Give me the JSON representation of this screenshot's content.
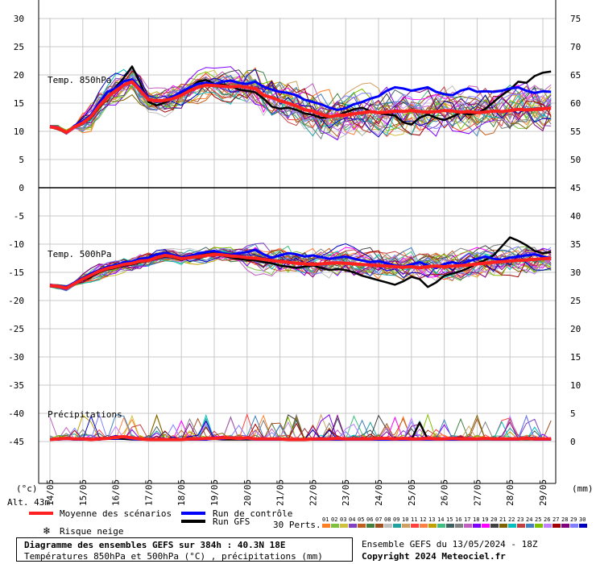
{
  "chart_data": {
    "type": "line",
    "title": "Diagramme des ensembles GEFS sur 384h : 40.3N 18E",
    "subtitle": "Températures 850hPa et 500hPa (°C) , précipitations (mm)",
    "ensemble_label": "Ensemble GEFS du 13/05/2024 - 18Z",
    "copyright": "Copyright 2024 Meteociel.fr",
    "altitude": "Alt. 43m",
    "left_unit": "(°c)",
    "right_unit": "(mm)",
    "panel_labels": {
      "t850": "Temp. 850hPa",
      "t500": "Temp. 500hPa",
      "precip": "Précipitations"
    },
    "x_dates": [
      "14/05",
      "15/05",
      "16/05",
      "17/05",
      "18/05",
      "19/05",
      "20/05",
      "21/05",
      "22/05",
      "23/05",
      "24/05",
      "25/05",
      "26/05",
      "27/05",
      "28/05",
      "29/05"
    ],
    "x_range_days": [
      0,
      15.25
    ],
    "left_ticks": [
      30,
      25,
      20,
      15,
      10,
      5,
      0,
      -5,
      -10,
      -15,
      -20,
      -25,
      -30,
      -35,
      -40,
      -45
    ],
    "right_ticks": [
      75,
      70,
      65,
      60,
      55,
      50,
      45,
      40,
      35,
      30,
      25,
      20,
      15,
      10,
      5,
      0
    ],
    "legend": {
      "mean": "Moyenne des scénarios",
      "control": "Run de contrôle",
      "gfs": "Run GFS",
      "snow": "Risque neige",
      "perts": "30 Perts."
    },
    "perturbation_ids": [
      "01",
      "02",
      "03",
      "04",
      "05",
      "06",
      "07",
      "08",
      "09",
      "10",
      "11",
      "12",
      "13",
      "14",
      "15",
      "16",
      "17",
      "18",
      "19",
      "20",
      "21",
      "22",
      "23",
      "24",
      "25",
      "26",
      "27",
      "28",
      "29",
      "30"
    ],
    "perturbation_colors": [
      "#ff7f27",
      "#80c040",
      "#d0c040",
      "#8040c0",
      "#c06020",
      "#408040",
      "#a05020",
      "#c0c0c0",
      "#20a0a0",
      "#d0a060",
      "#ff4040",
      "#ff8040",
      "#c0a000",
      "#40c080",
      "#406060",
      "#808080",
      "#c060c0",
      "#8000ff",
      "#ff00ff",
      "#404040",
      "#806000",
      "#00c0c0",
      "#c04040",
      "#4080c0",
      "#80c000",
      "#c080ff",
      "#a00000",
      "#800080",
      "#8080ff",
      "#0000c0"
    ],
    "series_t850": {
      "x": [
        0,
        0.25,
        0.5,
        0.75,
        1,
        1.25,
        1.5,
        1.75,
        2,
        2.25,
        2.5,
        2.75,
        3,
        3.25,
        3.5,
        3.75,
        4,
        4.25,
        4.5,
        4.75,
        5,
        5.25,
        5.5,
        5.75,
        6,
        6.25,
        6.5,
        6.75,
        7,
        7.25,
        7.5,
        7.75,
        8,
        8.25,
        8.5,
        8.75,
        9,
        9.25,
        9.5,
        9.75,
        10,
        10.25,
        10.5,
        10.75,
        11,
        11.25,
        11.5,
        11.75,
        12,
        12.25,
        12.5,
        12.75,
        13,
        13.25,
        13.5,
        13.75,
        14,
        14.25,
        14.5,
        14.75,
        15,
        15.25
      ],
      "mean": [
        10.8,
        10.6,
        9.8,
        10.8,
        11.5,
        12.6,
        14.5,
        16.1,
        17.2,
        18.2,
        18.8,
        17.2,
        15.6,
        15.4,
        15.5,
        15.8,
        16.4,
        17.2,
        17.8,
        18.2,
        18.1,
        18.0,
        17.9,
        18.0,
        17.8,
        17.6,
        16.4,
        16.0,
        15.4,
        15.0,
        14.5,
        13.8,
        13.6,
        13.0,
        12.6,
        12.8,
        12.9,
        13.1,
        13.3,
        13.5,
        13.3,
        13.4,
        13.6,
        13.5,
        13.7,
        13.5,
        13.4,
        13.5,
        13.7,
        13.6,
        13.4,
        13.5,
        13.3,
        13.4,
        13.6,
        13.5,
        13.7,
        13.9,
        13.8,
        13.9,
        14.0,
        14.1
      ],
      "control": [
        10.9,
        10.7,
        9.7,
        11.0,
        11.8,
        12.9,
        15.0,
        17.0,
        17.6,
        18.9,
        19.2,
        17.6,
        15.8,
        15.2,
        15.6,
        16.2,
        17.0,
        17.8,
        18.4,
        18.6,
        18.3,
        18.8,
        19.0,
        18.6,
        18.4,
        18.8,
        17.9,
        17.4,
        17.0,
        16.8,
        16.4,
        15.6,
        15.2,
        14.8,
        14.2,
        13.8,
        14.1,
        14.8,
        15.2,
        15.8,
        16.2,
        17.2,
        17.8,
        17.6,
        17.2,
        17.5,
        17.8,
        17.0,
        16.6,
        16.4,
        17.2,
        17.6,
        17.0,
        17.1,
        17.0,
        17.2,
        17.6,
        17.8,
        17.2,
        16.8,
        17.1,
        17.0
      ],
      "gfs": [
        10.8,
        10.5,
        9.9,
        10.7,
        11.4,
        12.4,
        14.2,
        16.0,
        17.8,
        19.5,
        21.5,
        18.5,
        15.2,
        14.6,
        15.1,
        15.8,
        16.6,
        17.6,
        18.8,
        19.1,
        18.4,
        18.3,
        18.0,
        17.4,
        17.2,
        16.9,
        15.8,
        14.4,
        14.0,
        14.2,
        13.8,
        13.2,
        12.9,
        12.4,
        12.5,
        12.8,
        13.4,
        13.9,
        14.2,
        13.6,
        13.2,
        13.0,
        12.8,
        11.6,
        11.2,
        12.4,
        13.0,
        12.4,
        12.0,
        12.6,
        13.3,
        13.0,
        13.2,
        14.0,
        15.2,
        16.4,
        17.4,
        18.8,
        18.6,
        19.8,
        20.4,
        20.6
      ]
    },
    "series_t500": {
      "x": [
        0,
        0.25,
        0.5,
        0.75,
        1,
        1.25,
        1.5,
        1.75,
        2,
        2.25,
        2.5,
        2.75,
        3,
        3.25,
        3.5,
        3.75,
        4,
        4.25,
        4.5,
        4.75,
        5,
        5.25,
        5.5,
        5.75,
        6,
        6.25,
        6.5,
        6.75,
        7,
        7.25,
        7.5,
        7.75,
        8,
        8.25,
        8.5,
        8.75,
        9,
        9.25,
        9.5,
        9.75,
        10,
        10.25,
        10.5,
        10.75,
        11,
        11.25,
        11.5,
        11.75,
        12,
        12.25,
        12.5,
        12.75,
        13,
        13.25,
        13.5,
        13.75,
        14,
        14.25,
        14.5,
        14.75,
        15,
        15.25
      ],
      "mean": [
        -17.3,
        -17.5,
        -17.8,
        -17.0,
        -16.2,
        -15.5,
        -14.8,
        -14.3,
        -14.0,
        -13.6,
        -13.4,
        -13.0,
        -12.9,
        -12.4,
        -12.0,
        -12.2,
        -12.6,
        -12.4,
        -12.2,
        -12.0,
        -11.8,
        -11.9,
        -12.1,
        -12.2,
        -12.4,
        -12.5,
        -12.7,
        -12.9,
        -13.1,
        -13.2,
        -13.4,
        -13.5,
        -13.6,
        -13.5,
        -13.4,
        -13.3,
        -13.4,
        -13.5,
        -13.6,
        -13.7,
        -13.8,
        -13.9,
        -14.0,
        -14.1,
        -14.0,
        -14.2,
        -14.0,
        -13.9,
        -14.0,
        -13.9,
        -13.8,
        -13.7,
        -13.5,
        -13.4,
        -13.2,
        -13.1,
        -13.0,
        -12.9,
        -12.8,
        -12.7,
        -12.6,
        -12.5
      ],
      "control": [
        -17.2,
        -17.4,
        -17.6,
        -16.8,
        -16.0,
        -15.2,
        -14.6,
        -14.0,
        -13.8,
        -13.2,
        -13.1,
        -12.6,
        -12.4,
        -11.8,
        -11.6,
        -11.9,
        -12.4,
        -12.1,
        -11.7,
        -11.4,
        -11.2,
        -11.6,
        -11.9,
        -11.6,
        -11.4,
        -11.0,
        -11.8,
        -12.4,
        -12.0,
        -11.6,
        -11.8,
        -12.2,
        -12.0,
        -12.3,
        -12.6,
        -12.4,
        -12.2,
        -12.6,
        -12.9,
        -13.2,
        -13.0,
        -13.4,
        -13.8,
        -14.0,
        -13.6,
        -13.2,
        -13.8,
        -14.2,
        -13.5,
        -13.2,
        -13.6,
        -13.0,
        -12.6,
        -12.2,
        -12.6,
        -12.8,
        -12.4,
        -12.2,
        -12.0,
        -11.8,
        -12.2,
        -12.5
      ],
      "gfs": [
        -17.4,
        -17.6,
        -17.9,
        -17.1,
        -16.4,
        -15.8,
        -15.0,
        -14.5,
        -14.2,
        -13.8,
        -13.6,
        -13.2,
        -13.0,
        -12.6,
        -12.2,
        -12.4,
        -12.8,
        -12.4,
        -12.0,
        -11.8,
        -11.6,
        -12.0,
        -12.4,
        -12.6,
        -12.8,
        -12.9,
        -13.2,
        -13.4,
        -13.8,
        -14.0,
        -14.2,
        -14.0,
        -13.8,
        -14.2,
        -14.6,
        -14.4,
        -14.6,
        -15.0,
        -15.6,
        -16.0,
        -16.4,
        -16.8,
        -17.2,
        -16.6,
        -15.8,
        -16.2,
        -17.6,
        -16.8,
        -15.6,
        -15.2,
        -14.8,
        -14.2,
        -13.4,
        -12.8,
        -12.0,
        -10.4,
        -8.8,
        -9.4,
        -10.2,
        -11.2,
        -11.6,
        -11.4
      ]
    },
    "series_precip": {
      "x": [
        0,
        0.25,
        0.5,
        0.75,
        1,
        1.25,
        1.5,
        1.75,
        2,
        2.25,
        2.5,
        2.75,
        3,
        3.25,
        3.5,
        3.75,
        4,
        4.25,
        4.5,
        4.75,
        5,
        5.25,
        5.5,
        5.75,
        6,
        6.25,
        6.5,
        6.75,
        7,
        7.25,
        7.5,
        7.75,
        8,
        8.25,
        8.5,
        8.75,
        9,
        9.25,
        9.5,
        9.75,
        10,
        10.25,
        10.5,
        10.75,
        11,
        11.25,
        11.5,
        11.75,
        12,
        12.25,
        12.5,
        12.75,
        13,
        13.25,
        13.5,
        13.75,
        14,
        14.25,
        14.5,
        14.75,
        15,
        15.25
      ],
      "mean": [
        0,
        0.1,
        0.2,
        0.1,
        0.1,
        0,
        0.1,
        0.2,
        0.4,
        0.5,
        0.3,
        0.1,
        0,
        0,
        0,
        0,
        0,
        0.1,
        0.1,
        0.2,
        0.2,
        0.3,
        0.3,
        0.2,
        0.3,
        0.1,
        0.1,
        0.1,
        0.1,
        0,
        0,
        0,
        0.1,
        0.1,
        0.1,
        0.2,
        0.1,
        0.1,
        0.1,
        0.1,
        0.2,
        0.2,
        0.1,
        0.2,
        0.1,
        0.1,
        0.2,
        0.1,
        0.1,
        0.2,
        0.1,
        0.1,
        0.1,
        0.2,
        0.1,
        0.1,
        0.1,
        0.1,
        0.2,
        0.1,
        0.1,
        0.1
      ],
      "control": [
        0,
        0,
        0.1,
        0,
        0,
        0,
        0,
        0.2,
        0.6,
        0.4,
        0.1,
        0,
        0,
        0,
        0,
        0,
        0,
        0,
        0,
        0,
        0.2,
        0.1,
        0.4,
        0.1,
        0.2,
        0,
        0,
        0,
        0,
        0,
        0,
        0,
        0,
        0,
        0,
        0,
        0,
        0,
        0,
        0,
        0,
        0,
        0,
        0,
        0,
        0,
        0,
        0,
        0,
        0,
        0,
        0,
        0,
        0.1,
        0,
        0,
        0,
        0,
        0.3,
        0,
        0,
        0
      ],
      "gfs": [
        0,
        0,
        0.1,
        0,
        0,
        0,
        0,
        0.3,
        0.4,
        0.1,
        0,
        0,
        0,
        0,
        0,
        0,
        0,
        0,
        0,
        0,
        0.1,
        0,
        0,
        0,
        0,
        0,
        0,
        0,
        0,
        0,
        0,
        0,
        0,
        0,
        0,
        0,
        0,
        0,
        0,
        0,
        0,
        0,
        0,
        0,
        0,
        3.0,
        0,
        0,
        0,
        0,
        0,
        0,
        0,
        0,
        0,
        0,
        0,
        0,
        0,
        0,
        0,
        0
      ]
    }
  }
}
